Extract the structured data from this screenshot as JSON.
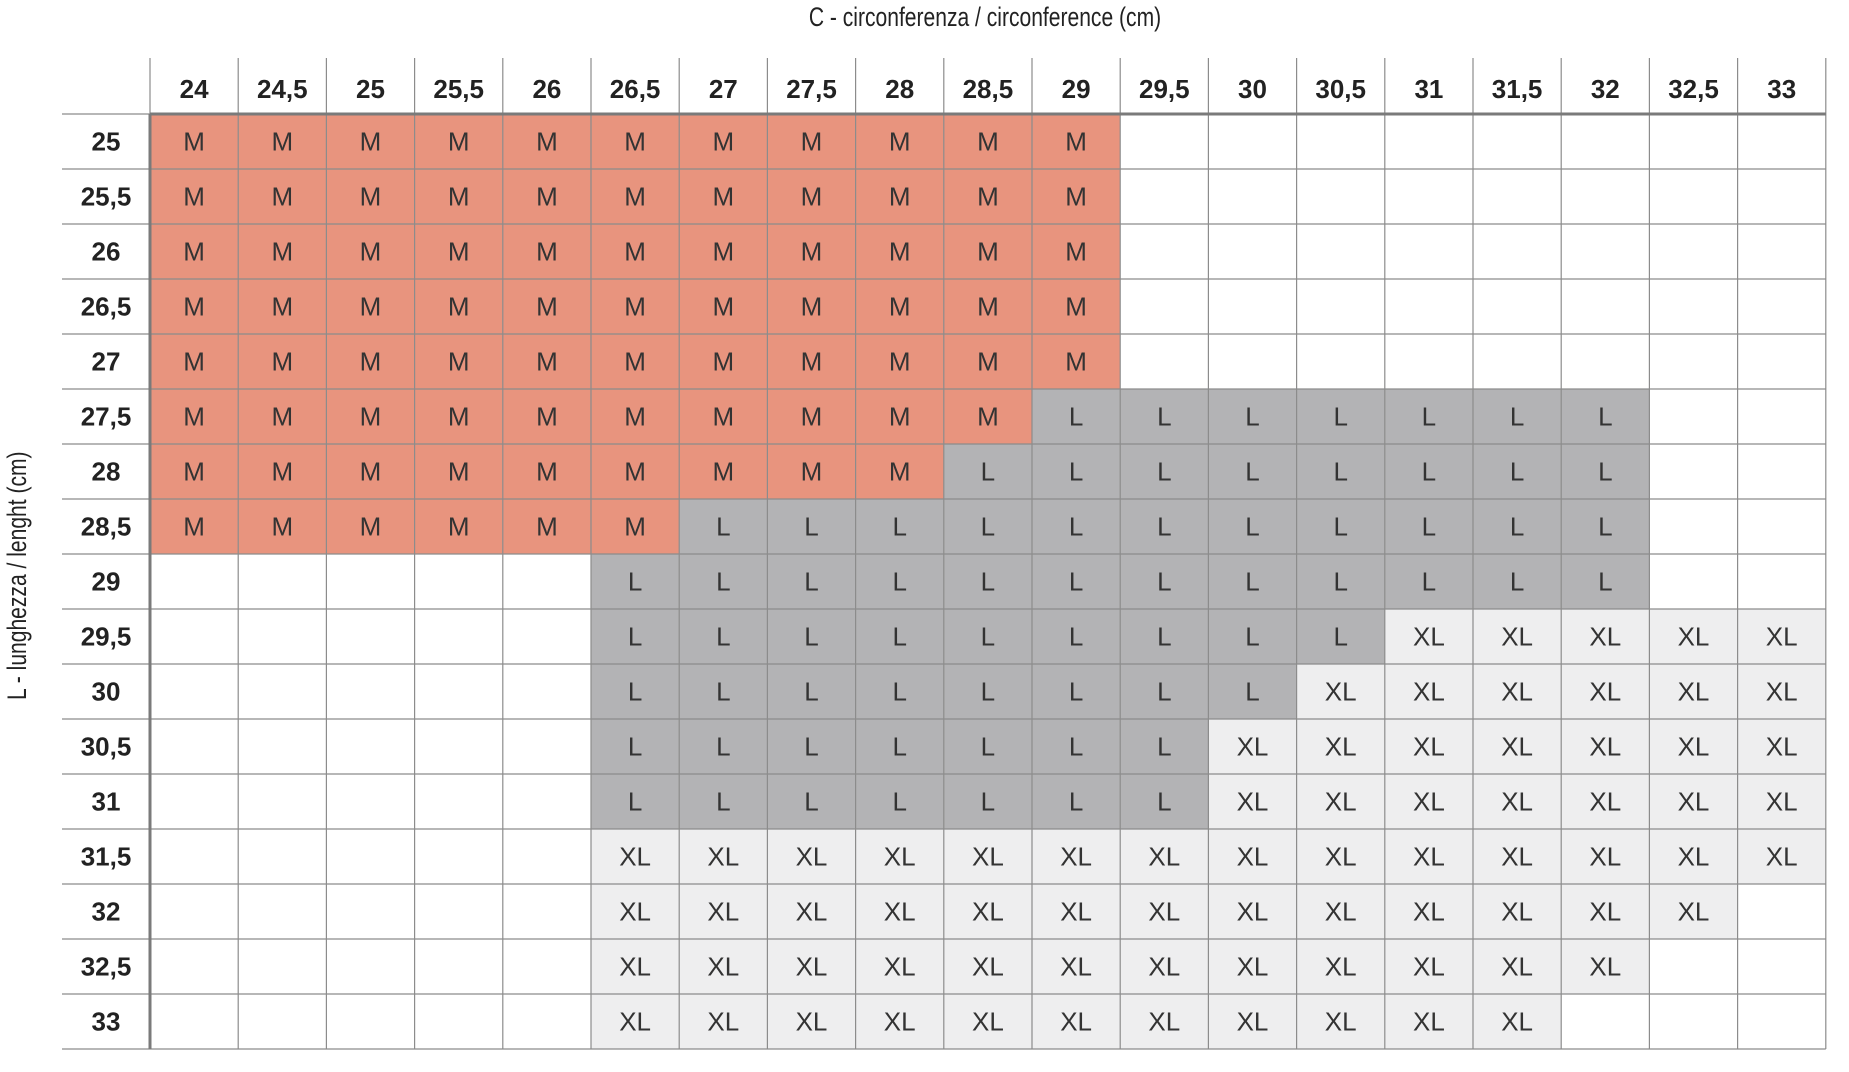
{
  "chart_data": {
    "type": "table",
    "title": "",
    "xlabel": "C - circonferenza / circonference (cm)",
    "ylabel": "L - lunghezza / lenght (cm)",
    "columns": [
      "24",
      "24,5",
      "25",
      "25,5",
      "26",
      "26,5",
      "27",
      "27,5",
      "28",
      "28,5",
      "29",
      "29,5",
      "30",
      "30,5",
      "31",
      "31,5",
      "32",
      "32,5",
      "33"
    ],
    "rows": [
      "25",
      "25,5",
      "26",
      "26,5",
      "27",
      "27,5",
      "28",
      "28,5",
      "29",
      "29,5",
      "30",
      "30,5",
      "31",
      "31,5",
      "32",
      "32,5",
      "33"
    ],
    "cells": [
      [
        "M",
        "M",
        "M",
        "M",
        "M",
        "M",
        "M",
        "M",
        "M",
        "M",
        "M",
        "",
        "",
        "",
        "",
        "",
        "",
        "",
        ""
      ],
      [
        "M",
        "M",
        "M",
        "M",
        "M",
        "M",
        "M",
        "M",
        "M",
        "M",
        "M",
        "",
        "",
        "",
        "",
        "",
        "",
        "",
        ""
      ],
      [
        "M",
        "M",
        "M",
        "M",
        "M",
        "M",
        "M",
        "M",
        "M",
        "M",
        "M",
        "",
        "",
        "",
        "",
        "",
        "",
        "",
        ""
      ],
      [
        "M",
        "M",
        "M",
        "M",
        "M",
        "M",
        "M",
        "M",
        "M",
        "M",
        "M",
        "",
        "",
        "",
        "",
        "",
        "",
        "",
        ""
      ],
      [
        "M",
        "M",
        "M",
        "M",
        "M",
        "M",
        "M",
        "M",
        "M",
        "M",
        "M",
        "",
        "",
        "",
        "",
        "",
        "",
        "",
        ""
      ],
      [
        "M",
        "M",
        "M",
        "M",
        "M",
        "M",
        "M",
        "M",
        "M",
        "M",
        "L",
        "L",
        "L",
        "L",
        "L",
        "L",
        "L",
        "",
        ""
      ],
      [
        "M",
        "M",
        "M",
        "M",
        "M",
        "M",
        "M",
        "M",
        "M",
        "L",
        "L",
        "L",
        "L",
        "L",
        "L",
        "L",
        "L",
        "",
        ""
      ],
      [
        "M",
        "M",
        "M",
        "M",
        "M",
        "M",
        "L",
        "L",
        "L",
        "L",
        "L",
        "L",
        "L",
        "L",
        "L",
        "L",
        "L",
        "",
        ""
      ],
      [
        "",
        "",
        "",
        "",
        "",
        "L",
        "L",
        "L",
        "L",
        "L",
        "L",
        "L",
        "L",
        "L",
        "L",
        "L",
        "L",
        "",
        ""
      ],
      [
        "",
        "",
        "",
        "",
        "",
        "L",
        "L",
        "L",
        "L",
        "L",
        "L",
        "L",
        "L",
        "L",
        "XL",
        "XL",
        "XL",
        "XL",
        "XL"
      ],
      [
        "",
        "",
        "",
        "",
        "",
        "L",
        "L",
        "L",
        "L",
        "L",
        "L",
        "L",
        "L",
        "XL",
        "XL",
        "XL",
        "XL",
        "XL",
        "XL"
      ],
      [
        "",
        "",
        "",
        "",
        "",
        "L",
        "L",
        "L",
        "L",
        "L",
        "L",
        "L",
        "XL",
        "XL",
        "XL",
        "XL",
        "XL",
        "XL",
        "XL"
      ],
      [
        "",
        "",
        "",
        "",
        "",
        "L",
        "L",
        "L",
        "L",
        "L",
        "L",
        "L",
        "XL",
        "XL",
        "XL",
        "XL",
        "XL",
        "XL",
        "XL"
      ],
      [
        "",
        "",
        "",
        "",
        "",
        "XL",
        "XL",
        "XL",
        "XL",
        "XL",
        "XL",
        "XL",
        "XL",
        "XL",
        "XL",
        "XL",
        "XL",
        "XL",
        "XL"
      ],
      [
        "",
        "",
        "",
        "",
        "",
        "XL",
        "XL",
        "XL",
        "XL",
        "XL",
        "XL",
        "XL",
        "XL",
        "XL",
        "XL",
        "XL",
        "XL",
        "XL",
        ""
      ],
      [
        "",
        "",
        "",
        "",
        "",
        "XL",
        "XL",
        "XL",
        "XL",
        "XL",
        "XL",
        "XL",
        "XL",
        "XL",
        "XL",
        "XL",
        "XL",
        "",
        ""
      ],
      [
        "",
        "",
        "",
        "",
        "",
        "XL",
        "XL",
        "XL",
        "XL",
        "XL",
        "XL",
        "XL",
        "XL",
        "XL",
        "XL",
        "XL",
        "",
        "",
        ""
      ]
    ],
    "size_colors": {
      "M": "#e8947e",
      "L": "#b3b3b5",
      "XL": "#eeeeef",
      "": "#ffffff"
    },
    "grid": true
  }
}
